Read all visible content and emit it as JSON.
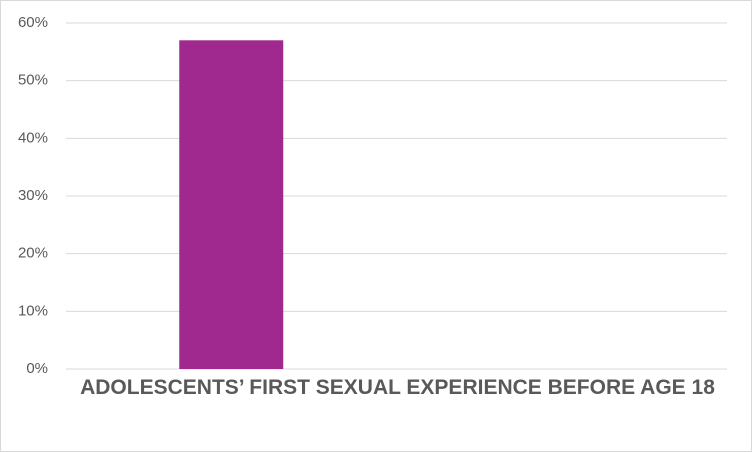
{
  "chart_data": {
    "type": "bar",
    "categories": [
      "ADOLESCENTS’ FIRST SEXUAL EXPERIENCE BEFORE AGE 18"
    ],
    "values": [
      57
    ],
    "color": "#a0298f",
    "ylim": [
      0,
      60
    ],
    "yticks": [
      {
        "value": 0,
        "label": "0%"
      },
      {
        "value": 10,
        "label": "10%"
      },
      {
        "value": 20,
        "label": "20%"
      },
      {
        "value": 30,
        "label": "30%"
      },
      {
        "value": 40,
        "label": "40%"
      },
      {
        "value": 50,
        "label": "50%"
      },
      {
        "value": 60,
        "label": "60%"
      }
    ],
    "grid": true
  }
}
